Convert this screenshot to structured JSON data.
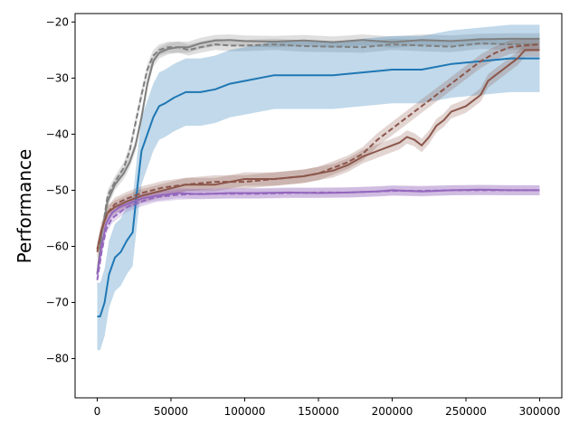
{
  "chart_data": {
    "type": "line",
    "title": "",
    "xlabel": "",
    "ylabel": "Performance",
    "xlim": [
      -15000,
      315000
    ],
    "ylim": [
      -87,
      -18.5
    ],
    "grid": false,
    "xticks": [
      0,
      50000,
      100000,
      150000,
      200000,
      250000,
      300000
    ],
    "xtick_labels": [
      "0",
      "50000",
      "100000",
      "150000",
      "200000",
      "250000",
      "300000"
    ],
    "yticks": [
      -80,
      -70,
      -60,
      -50,
      -40,
      -30,
      -20
    ],
    "ytick_labels": [
      "−80",
      "−70",
      "−60",
      "−50",
      "−40",
      "−30",
      "−20"
    ],
    "series": [
      {
        "color": "#7f7f7f",
        "dash": false,
        "band": 1.0,
        "x": [
          0,
          3000,
          7000,
          12000,
          18000,
          22000,
          26000,
          30000,
          34000,
          38000,
          42000,
          48000,
          55000,
          62000,
          70000,
          80000,
          90000,
          100000,
          120000,
          140000,
          160000,
          180000,
          200000,
          220000,
          240000,
          260000,
          280000,
          300000
        ],
        "y": [
          -65,
          -58,
          -52,
          -49,
          -47,
          -45,
          -42,
          -37,
          -31,
          -27,
          -25.5,
          -24.8,
          -24.5,
          -24.5,
          -23.8,
          -23.3,
          -23.2,
          -23.4,
          -23.5,
          -23.3,
          -23.6,
          -23.2,
          -23.6,
          -23.2,
          -23.4,
          -23.1,
          -23.0,
          -23.0
        ]
      },
      {
        "color": "#7f7f7f",
        "dash": true,
        "band": 1.0,
        "x": [
          0,
          3000,
          7000,
          12000,
          18000,
          22000,
          26000,
          30000,
          34000,
          38000,
          42000,
          48000,
          55000,
          62000,
          70000,
          80000,
          90000,
          100000,
          120000,
          140000,
          160000,
          180000,
          200000,
          220000,
          240000,
          260000,
          280000,
          300000
        ],
        "y": [
          -65,
          -58,
          -51,
          -48.5,
          -46,
          -43,
          -38,
          -33,
          -28.5,
          -26,
          -25,
          -24.5,
          -24.5,
          -25,
          -24.5,
          -24.0,
          -24.2,
          -24.2,
          -24.0,
          -24.3,
          -24.4,
          -24.5,
          -24.0,
          -24.2,
          -24.4,
          -23.8,
          -24.0,
          -24.0
        ]
      },
      {
        "color": "#1f77b4",
        "dash": false,
        "band": 6.0,
        "x": [
          0,
          2000,
          5000,
          8000,
          12000,
          16000,
          20000,
          24000,
          27000,
          30000,
          34000,
          38000,
          42000,
          46000,
          52000,
          60000,
          70000,
          80000,
          90000,
          100000,
          120000,
          140000,
          160000,
          180000,
          200000,
          220000,
          240000,
          260000,
          280000,
          290000,
          300000
        ],
        "y": [
          -72.5,
          -72.5,
          -70,
          -65,
          -62,
          -61,
          -59,
          -57.5,
          -50,
          -43,
          -40,
          -37,
          -35,
          -34.5,
          -33.5,
          -32.5,
          -32.5,
          -32.0,
          -31.0,
          -30.5,
          -29.5,
          -29.5,
          -29.5,
          -29.0,
          -28.5,
          -28.5,
          -27.5,
          -27.0,
          -26.5,
          -26.5,
          -26.5
        ]
      },
      {
        "color": "#8c564b",
        "dash": false,
        "band": 1.2,
        "x": [
          0,
          3000,
          7000,
          12000,
          20000,
          30000,
          45000,
          60000,
          80000,
          100000,
          120000,
          140000,
          160000,
          170000,
          180000,
          190000,
          200000,
          205000,
          210000,
          215000,
          220000,
          225000,
          230000,
          235000,
          240000,
          245000,
          250000,
          255000,
          260000,
          265000,
          270000,
          275000,
          280000,
          285000,
          290000,
          295000,
          300000
        ],
        "y": [
          -60.5,
          -57,
          -54,
          -53,
          -52,
          -51,
          -50,
          -49,
          -49,
          -48,
          -48,
          -47.5,
          -46.5,
          -45.5,
          -44,
          -43,
          -42,
          -41.5,
          -40.5,
          -41.0,
          -42.0,
          -40.5,
          -38.5,
          -37.5,
          -36.0,
          -35.5,
          -35.0,
          -34.0,
          -33.0,
          -30.5,
          -29.5,
          -28.5,
          -27.5,
          -26.5,
          -25.0,
          -25.0,
          -25.0
        ]
      },
      {
        "color": "#8c564b",
        "dash": true,
        "band": 1.2,
        "x": [
          0,
          3000,
          7000,
          12000,
          20000,
          30000,
          45000,
          60000,
          80000,
          100000,
          120000,
          140000,
          150000,
          160000,
          170000,
          180000,
          190000,
          200000,
          210000,
          220000,
          230000,
          240000,
          250000,
          260000,
          270000,
          280000,
          290000,
          300000
        ],
        "y": [
          -61,
          -57,
          -54,
          -52.5,
          -51.5,
          -50.5,
          -49.5,
          -49,
          -48.5,
          -48.5,
          -48,
          -47.5,
          -47,
          -46,
          -45,
          -43.5,
          -41,
          -39,
          -37,
          -35,
          -33,
          -31,
          -29,
          -27,
          -25.5,
          -24.5,
          -24.2,
          -24.0
        ]
      },
      {
        "color": "#9467bd",
        "dash": false,
        "band": 0.9,
        "x": [
          0,
          3000,
          6000,
          10000,
          15000,
          20000,
          30000,
          40000,
          55000,
          70000,
          90000,
          110000,
          130000,
          150000,
          170000,
          190000,
          200000,
          220000,
          240000,
          260000,
          280000,
          300000
        ],
        "y": [
          -65,
          -60,
          -56,
          -54,
          -53,
          -52.5,
          -51.5,
          -51,
          -50.5,
          -50.7,
          -50.5,
          -50.5,
          -50.4,
          -50.5,
          -50.4,
          -50.2,
          -50.0,
          -50.2,
          -50.0,
          -49.9,
          -50.0,
          -50.0
        ]
      },
      {
        "color": "#9467bd",
        "dash": true,
        "band": 0.9,
        "x": [
          0,
          3000,
          6000,
          10000,
          15000,
          20000,
          30000,
          40000,
          55000,
          70000,
          90000,
          110000,
          130000,
          150000,
          170000,
          190000,
          200000,
          220000,
          240000,
          260000,
          280000,
          300000
        ],
        "y": [
          -66,
          -61,
          -57,
          -55,
          -54,
          -53,
          -52,
          -51.2,
          -50.8,
          -50.6,
          -50.6,
          -50.6,
          -50.5,
          -50.4,
          -50.4,
          -50.2,
          -50.1,
          -50.1,
          -50.0,
          -50.0,
          -50.0,
          -50.0
        ]
      }
    ]
  }
}
